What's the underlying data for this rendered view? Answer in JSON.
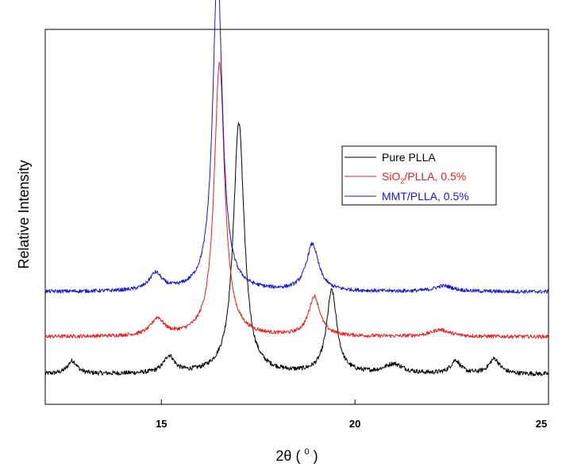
{
  "chart_data": {
    "type": "line",
    "title": "",
    "xlabel": "2θ ( 0 )",
    "ylabel": "Relative Intensity",
    "xlim": [
      12,
      25
    ],
    "x_ticks": [
      15,
      20,
      25
    ],
    "y_ticks_visible": false,
    "grid": false,
    "legend_position": "upper-right",
    "series": [
      {
        "name": "Pure PLLA",
        "color": "#000000",
        "baseline": 0.08,
        "noise": 0.006,
        "peaks": [
          {
            "x": 12.7,
            "height": 0.035,
            "width": 0.15
          },
          {
            "x": 15.2,
            "height": 0.045,
            "width": 0.17
          },
          {
            "x": 17.0,
            "height": 0.67,
            "width": 0.17
          },
          {
            "x": 19.4,
            "height": 0.22,
            "width": 0.16
          },
          {
            "x": 21.0,
            "height": 0.025,
            "width": 0.3
          },
          {
            "x": 22.6,
            "height": 0.035,
            "width": 0.15
          },
          {
            "x": 23.6,
            "height": 0.04,
            "width": 0.17
          }
        ]
      },
      {
        "name": "SiO2/PLLA, 0.5%",
        "name_main": "SiO",
        "name_sub": "2",
        "name_rest": "/PLLA, 0.5%",
        "color": "#e8201e",
        "baseline": 0.18,
        "noise": 0.005,
        "peaks": [
          {
            "x": 14.9,
            "height": 0.045,
            "width": 0.2
          },
          {
            "x": 16.5,
            "height": 0.73,
            "width": 0.16
          },
          {
            "x": 18.95,
            "height": 0.105,
            "width": 0.18
          },
          {
            "x": 22.2,
            "height": 0.018,
            "width": 0.3
          }
        ]
      },
      {
        "name": "MMT/PLLA, 0.5%",
        "color": "#1818c8",
        "baseline": 0.3,
        "noise": 0.005,
        "peaks": [
          {
            "x": 14.85,
            "height": 0.045,
            "width": 0.2
          },
          {
            "x": 16.45,
            "height": 0.86,
            "width": 0.15
          },
          {
            "x": 18.9,
            "height": 0.125,
            "width": 0.19
          },
          {
            "x": 22.3,
            "height": 0.015,
            "width": 0.3
          }
        ]
      }
    ]
  }
}
